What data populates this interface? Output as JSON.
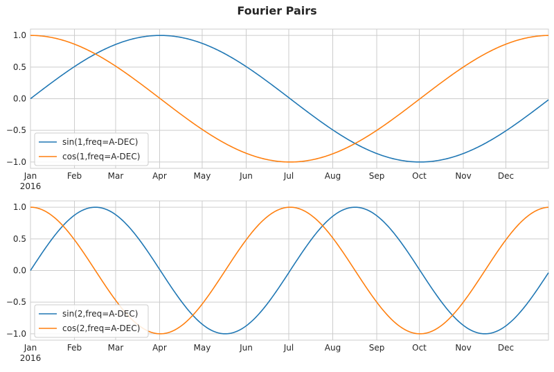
{
  "figure": {
    "title": "Fourier Pairs"
  },
  "colors": {
    "series1": "#1f77b4",
    "series2": "#ff7f0e",
    "grid": "#cccccc",
    "axes": "#cccccc"
  },
  "chart_data": [
    {
      "type": "line",
      "title": "",
      "xlabel": "",
      "ylabel": "",
      "x_domain": [
        "2016-01-01",
        "2016-12-31"
      ],
      "x_ticks": [
        "Jan",
        "Feb",
        "Mar",
        "Apr",
        "May",
        "Jun",
        "Jul",
        "Aug",
        "Sep",
        "Oct",
        "Nov",
        "Dec"
      ],
      "x_year_label": "2016",
      "ylim": [
        -1.1,
        1.1
      ],
      "y_ticks": [
        1.0,
        0.5,
        0.0,
        -0.5,
        -1.0
      ],
      "y_tick_labels": [
        "1.0",
        "0.5",
        "0.0",
        "−0.5",
        "−1.0"
      ],
      "grid": true,
      "legend_position": "lower-left",
      "series": [
        {
          "name": "sin(1,freq=A-DEC)",
          "function": "sin",
          "harmonic": 1,
          "color": "#1f77b4"
        },
        {
          "name": "cos(1,freq=A-DEC)",
          "function": "cos",
          "harmonic": 1,
          "color": "#ff7f0e"
        }
      ]
    },
    {
      "type": "line",
      "title": "",
      "xlabel": "",
      "ylabel": "",
      "x_domain": [
        "2016-01-01",
        "2016-12-31"
      ],
      "x_ticks": [
        "Jan",
        "Feb",
        "Mar",
        "Apr",
        "May",
        "Jun",
        "Jul",
        "Aug",
        "Sep",
        "Oct",
        "Nov",
        "Dec"
      ],
      "x_year_label": "2016",
      "ylim": [
        -1.1,
        1.1
      ],
      "y_ticks": [
        1.0,
        0.5,
        0.0,
        -0.5,
        -1.0
      ],
      "y_tick_labels": [
        "1.0",
        "0.5",
        "0.0",
        "−0.5",
        "−1.0"
      ],
      "grid": true,
      "legend_position": "lower-left",
      "series": [
        {
          "name": "sin(2,freq=A-DEC)",
          "function": "sin",
          "harmonic": 2,
          "color": "#1f77b4"
        },
        {
          "name": "cos(2,freq=A-DEC)",
          "function": "cos",
          "harmonic": 2,
          "color": "#ff7f0e"
        }
      ]
    }
  ]
}
